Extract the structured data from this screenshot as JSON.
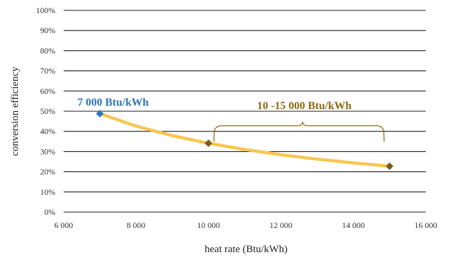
{
  "chart_data": {
    "type": "line",
    "title": "",
    "xlabel": "heat rate (Btu/kWh)",
    "ylabel": "conversion efficiency",
    "xlim": [
      6000,
      16000
    ],
    "ylim": [
      0,
      1
    ],
    "x_ticks": [
      6000,
      8000,
      10000,
      12000,
      14000,
      16000
    ],
    "x_tick_labels": [
      "6 000",
      "8 000",
      "10 000",
      "12 000",
      "14 000",
      "16 000"
    ],
    "y_ticks": [
      0,
      0.1,
      0.2,
      0.3,
      0.4,
      0.5,
      0.6,
      0.7,
      0.8,
      0.9,
      1.0
    ],
    "y_tick_labels": [
      "0%",
      "10%",
      "20%",
      "30%",
      "40%",
      "50%",
      "60%",
      "70%",
      "80%",
      "90%",
      "100%"
    ],
    "grid": true,
    "series": [
      {
        "curve_x": [
          7000,
          8000,
          9000,
          10000,
          11000,
          12000,
          13000,
          14000,
          15000
        ],
        "curve_y": [
          0.488,
          0.4265,
          0.3791,
          0.3412,
          0.3102,
          0.2843,
          0.2625,
          0.2437,
          0.2275
        ],
        "line_color": "#f7c64f"
      }
    ],
    "markers": [
      {
        "x": 7000,
        "y": 0.488,
        "color": "#2e75b6"
      },
      {
        "x": 10000,
        "y": 0.3412,
        "color": "#7f5a1e"
      },
      {
        "x": 15000,
        "y": 0.2275,
        "color": "#7f5a1e"
      }
    ],
    "annotations": [
      {
        "text": "7 000 Btu/kWh",
        "color": "#2e75b6"
      },
      {
        "text": "10 -15 000 Btu/kWh",
        "color": "#8b6914"
      }
    ],
    "bracket_color": "#8b6914"
  }
}
